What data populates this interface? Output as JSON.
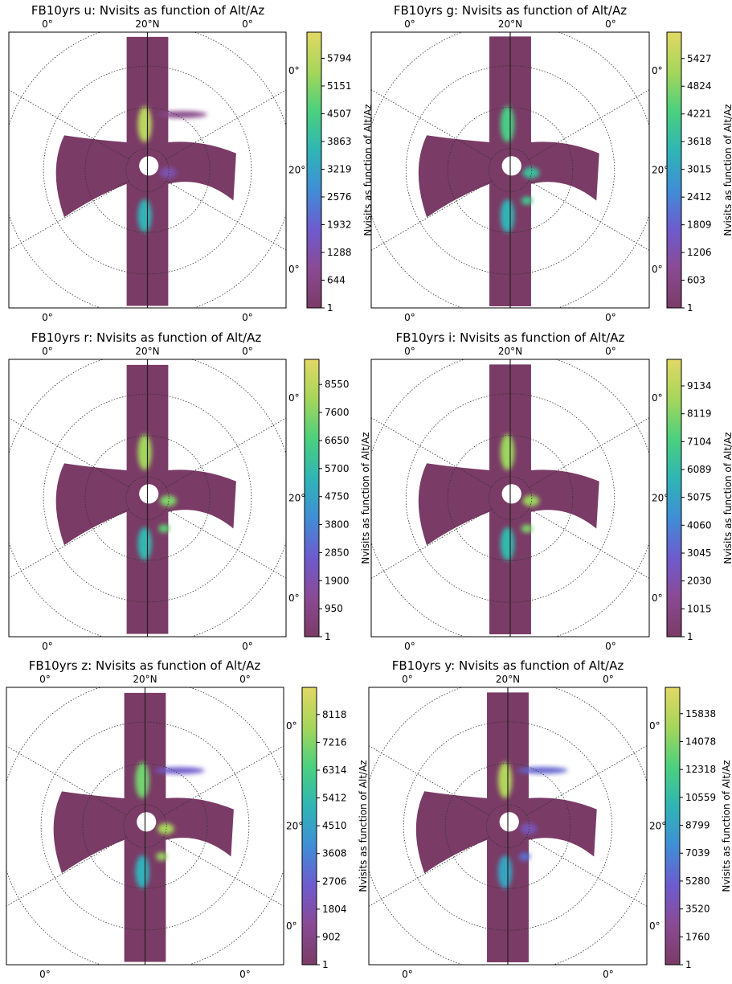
{
  "figure": {
    "colorbar_label": "Nvisits as function of Alt/Az",
    "colormap": [
      "#7a3b66",
      "#8a4a94",
      "#6e5bcf",
      "#3f8ed6",
      "#2fb5b5",
      "#4bd07e",
      "#a6d65a",
      "#e2d864"
    ],
    "footprint_color": "#7a3b66",
    "grid_ring_labels": {
      "outer_corner": "0°",
      "middle": "20°",
      "top_center": "20°N"
    }
  },
  "chart_data": [
    {
      "type": "heatmap",
      "title": "FB10yrs u: Nvisits as function of Alt/Az",
      "colorbar_ticks": [
        "1",
        "644",
        "1288",
        "1932",
        "2576",
        "3219",
        "3863",
        "4507",
        "5151",
        "5794"
      ],
      "colorbar_range": [
        1,
        6400
      ],
      "hotspots": [
        {
          "name": "north-upper",
          "value": 5800
        },
        {
          "name": "south-lower",
          "value": 3600
        },
        {
          "name": "east-center",
          "value": 1300
        },
        {
          "name": "ne-streaks",
          "value": 700
        }
      ]
    },
    {
      "type": "heatmap",
      "title": "FB10yrs g: Nvisits as function of Alt/Az",
      "colorbar_ticks": [
        "1",
        "603",
        "1206",
        "1809",
        "2412",
        "3015",
        "3618",
        "4221",
        "4824",
        "5427"
      ],
      "colorbar_range": [
        1,
        6000
      ],
      "hotspots": [
        {
          "name": "north-upper",
          "value": 4200
        },
        {
          "name": "south-lower",
          "value": 3400
        },
        {
          "name": "east-center",
          "value": 3800
        },
        {
          "name": "se-spot",
          "value": 4000
        }
      ]
    },
    {
      "type": "heatmap",
      "title": "FB10yrs r: Nvisits as function of Alt/Az",
      "colorbar_ticks": [
        "1",
        "950",
        "1900",
        "2850",
        "3800",
        "4750",
        "5700",
        "6650",
        "7600",
        "8550"
      ],
      "colorbar_range": [
        1,
        9400
      ],
      "hotspots": [
        {
          "name": "north-upper",
          "value": 8000
        },
        {
          "name": "south-lower",
          "value": 5500
        },
        {
          "name": "east-center",
          "value": 7500
        },
        {
          "name": "se-spot",
          "value": 7000
        }
      ]
    },
    {
      "type": "heatmap",
      "title": "FB10yrs i: Nvisits as function of Alt/Az",
      "colorbar_ticks": [
        "1",
        "1015",
        "2030",
        "3045",
        "4060",
        "5075",
        "6089",
        "7104",
        "8119",
        "9134"
      ],
      "colorbar_range": [
        1,
        10100
      ],
      "hotspots": [
        {
          "name": "north-upper",
          "value": 8500
        },
        {
          "name": "south-lower",
          "value": 6000
        },
        {
          "name": "east-center",
          "value": 8500
        },
        {
          "name": "se-spot",
          "value": 8000
        }
      ]
    },
    {
      "type": "heatmap",
      "title": "FB10yrs z: Nvisits as function of Alt/Az",
      "colorbar_ticks": [
        "1",
        "902",
        "1804",
        "2706",
        "3608",
        "4510",
        "5412",
        "6314",
        "7216",
        "8118"
      ],
      "colorbar_range": [
        1,
        9000
      ],
      "hotspots": [
        {
          "name": "north-upper",
          "value": 7000
        },
        {
          "name": "south-lower",
          "value": 5000
        },
        {
          "name": "east-center",
          "value": 7800
        },
        {
          "name": "se-spot",
          "value": 7500
        },
        {
          "name": "ne-streaks",
          "value": 2500
        }
      ]
    },
    {
      "type": "heatmap",
      "title": "FB10yrs y: Nvisits as function of Alt/Az",
      "colorbar_ticks": [
        "1",
        "1760",
        "3520",
        "5280",
        "7039",
        "8799",
        "10559",
        "12318",
        "14078",
        "15838"
      ],
      "colorbar_range": [
        1,
        17500
      ],
      "hotspots": [
        {
          "name": "north-upper",
          "value": 15500
        },
        {
          "name": "south-lower",
          "value": 9000
        },
        {
          "name": "east-center",
          "value": 4000
        },
        {
          "name": "se-spot",
          "value": 6000
        },
        {
          "name": "ne-streaks",
          "value": 5500
        }
      ]
    }
  ]
}
